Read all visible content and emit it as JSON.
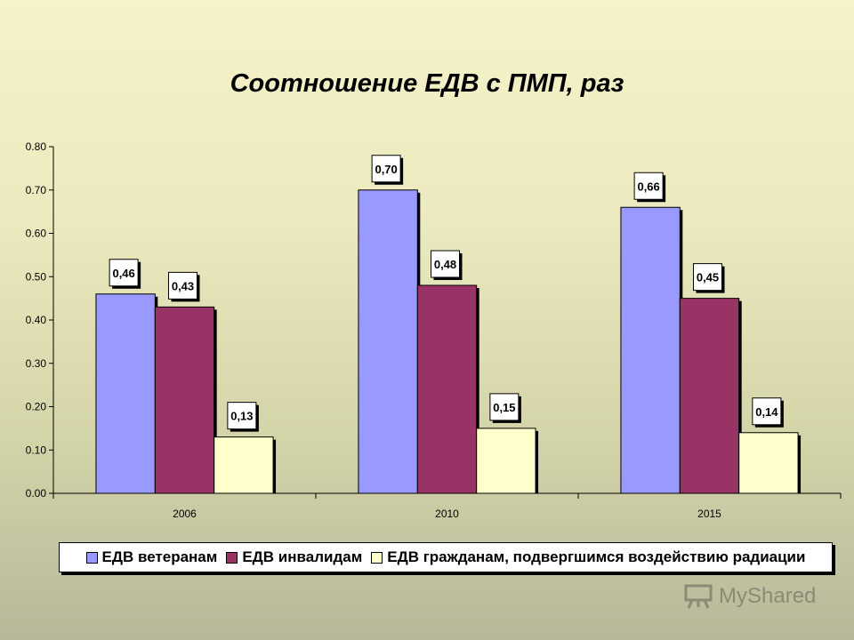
{
  "chart_data": {
    "type": "bar",
    "title": "Соотношение ЕДВ с ПМП, раз",
    "xlabel": "",
    "ylabel": "",
    "categories": [
      "2006",
      "2010",
      "2015"
    ],
    "ylim": [
      0,
      0.8
    ],
    "y_ticks": [
      "0.00",
      "0.10",
      "0.20",
      "0.30",
      "0.40",
      "0.50",
      "0.60",
      "0.70",
      "0.80"
    ],
    "grid": false,
    "legend_position": "bottom",
    "series": [
      {
        "name": "ЕДВ ветеранам",
        "values": [
          0.46,
          0.7,
          0.66
        ],
        "labels": [
          "0,46",
          "0,70",
          "0,66"
        ],
        "color": "#9999ff"
      },
      {
        "name": "ЕДВ инвалидам",
        "values": [
          0.43,
          0.48,
          0.45
        ],
        "labels": [
          "0,43",
          "0,48",
          "0,45"
        ],
        "color": "#993366"
      },
      {
        "name": "ЕДВ гражданам, подвергшимся воздействию радиации",
        "values": [
          0.13,
          0.15,
          0.14
        ],
        "labels": [
          "0,13",
          "0,15",
          "0,14"
        ],
        "color": "#ffffcc"
      }
    ]
  },
  "watermark": {
    "text": "MyShared",
    "icon": "presentation-board-icon"
  }
}
